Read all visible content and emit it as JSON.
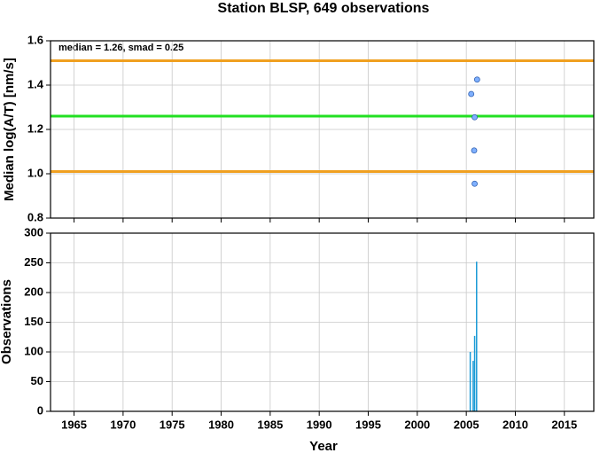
{
  "chart_data": [
    {
      "type": "scatter",
      "title": "Station BLSP, 649 observations",
      "y_label": "Median log(A/T) [nm/s]",
      "annotation": "median = 1.26, smad = 0.25",
      "x": [
        2005.5,
        2006.1,
        2005.85,
        2005.8,
        2005.85
      ],
      "values": [
        1.36,
        1.425,
        1.255,
        1.105,
        0.955
      ],
      "color": "#7fb0ff",
      "xlim": [
        1962.6,
        2018
      ],
      "xticks": [
        1965,
        1970,
        1975,
        1980,
        1985,
        1990,
        1995,
        2000,
        2005,
        2010,
        2015
      ],
      "ylim": [
        0.8,
        1.6
      ],
      "yticks": [
        0.8,
        {
          "value": 1,
          "label": "1.0"
        },
        1.2,
        1.4,
        1.6
      ],
      "hlines": [
        {
          "value": 1.51,
          "color": "#f0a020"
        },
        {
          "value": 1.26,
          "color": "#22e022"
        },
        {
          "value": 1.01,
          "color": "#f0a020"
        }
      ],
      "grid": true
    },
    {
      "type": "bar",
      "x_label": "Year",
      "y_label": "Observations",
      "x": [
        2005.4,
        2005.7,
        2005.85,
        2006.05
      ],
      "values": [
        100,
        85,
        127,
        252
      ],
      "color": "#1a9ad6",
      "xlim": [
        1962.6,
        2018
      ],
      "xticks": [
        1965,
        1970,
        1975,
        1980,
        1985,
        1990,
        1995,
        2000,
        2005,
        2010,
        2015
      ],
      "ylim": [
        0,
        300
      ],
      "yticks": [
        0,
        50,
        100,
        150,
        200,
        250,
        300
      ],
      "grid": true
    }
  ]
}
